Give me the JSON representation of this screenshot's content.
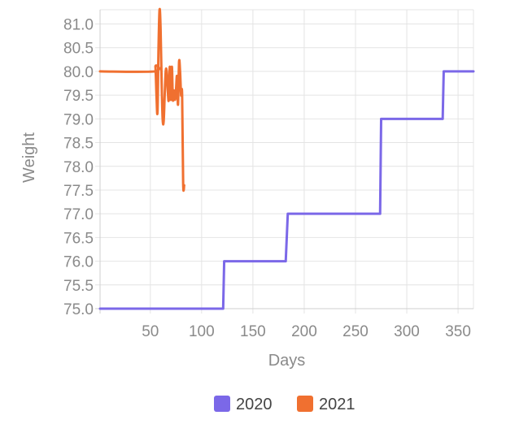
{
  "chart_data": {
    "type": "line",
    "xlabel": "Days",
    "ylabel": "Weight",
    "xlim": [
      1,
      365
    ],
    "ylim": [
      75.0,
      81.3
    ],
    "x_ticks": [
      50,
      100,
      150,
      200,
      250,
      300,
      350
    ],
    "y_ticks": [
      "75.0",
      "75.5",
      "76.0",
      "76.5",
      "77.0",
      "77.5",
      "78.0",
      "78.5",
      "79.0",
      "79.5",
      "80.0",
      "80.5",
      "81.0"
    ],
    "grid": true,
    "legend_position": "bottom",
    "series": [
      {
        "name": "2020",
        "color": "#7b68e8",
        "x": [
          1,
          121,
          122,
          182,
          184,
          274,
          275,
          335,
          336,
          365
        ],
        "y": [
          75.0,
          75.0,
          76.0,
          76.0,
          77.0,
          77.0,
          79.0,
          79.0,
          80.0,
          80.0
        ]
      },
      {
        "name": "2021",
        "color": "#f07030",
        "x": [
          1,
          54,
          55,
          56,
          57,
          58,
          59,
          60,
          61,
          62,
          63,
          64,
          65,
          66,
          67,
          68,
          69,
          70,
          71,
          72,
          73,
          74,
          75,
          76,
          77,
          78,
          79,
          80,
          81,
          82,
          83
        ],
        "y": [
          80.0,
          80.0,
          80.1,
          79.5,
          79.15,
          80.5,
          81.3,
          80.9,
          79.8,
          79.0,
          78.95,
          79.5,
          80.0,
          80.0,
          79.6,
          79.4,
          80.1,
          79.4,
          80.1,
          79.4,
          79.6,
          79.4,
          79.6,
          79.9,
          79.3,
          80.2,
          80.0,
          79.5,
          79.5,
          77.65,
          77.6
        ]
      }
    ]
  }
}
